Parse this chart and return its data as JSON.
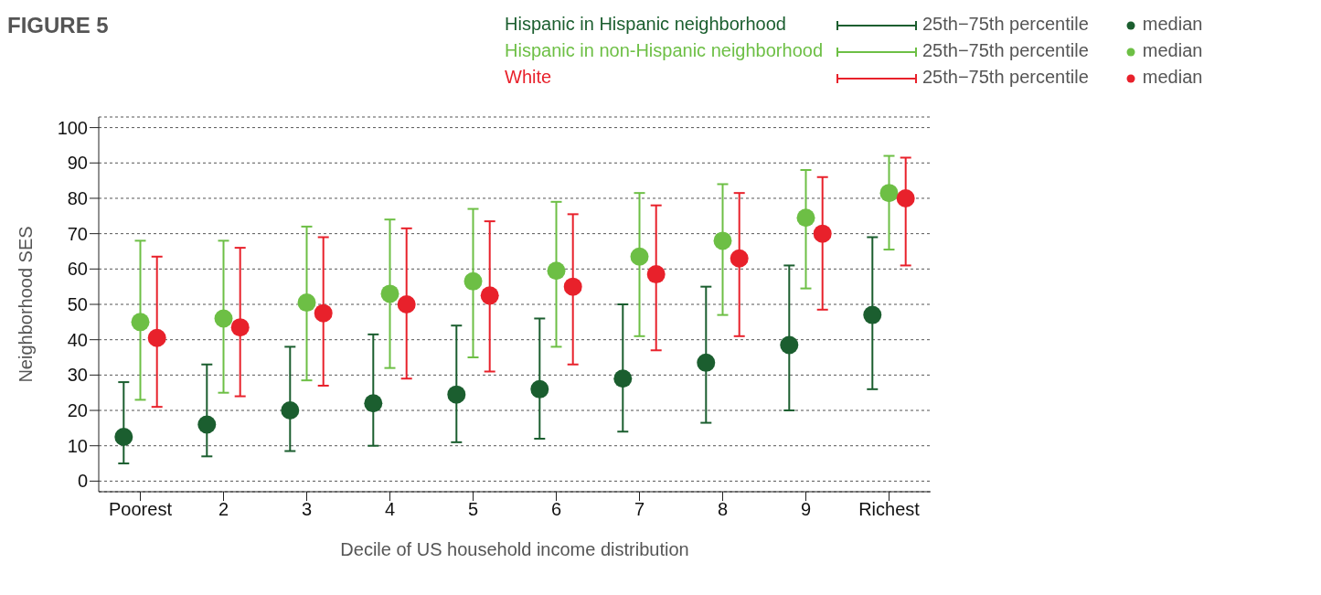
{
  "chart_data": {
    "type": "scatter",
    "title": "FIGURE 5",
    "xlabel": "Decile of US household income distribution",
    "ylabel": "Neighborhood SES",
    "categories": [
      "Poorest",
      "2",
      "3",
      "4",
      "5",
      "6",
      "7",
      "8",
      "9",
      "Richest"
    ],
    "series": [
      {
        "name": "Hispanic in Hispanic neighborhood",
        "color": "#1b5e2f",
        "values": [
          12.5,
          16,
          20,
          22,
          24.5,
          26,
          29,
          33.5,
          38.5,
          47
        ],
        "errors": [
          [
            5,
            28
          ],
          [
            7,
            33
          ],
          [
            8.5,
            38
          ],
          [
            10,
            41.5
          ],
          [
            11,
            44
          ],
          [
            12,
            46
          ],
          [
            14,
            50
          ],
          [
            16.5,
            55
          ],
          [
            20,
            61
          ],
          [
            26,
            69
          ]
        ]
      },
      {
        "name": "Hispanic in non-Hispanic neighborhood",
        "color": "#6dbf45",
        "values": [
          45,
          46,
          50.5,
          53,
          56.5,
          59.5,
          63.5,
          68,
          74.5,
          81.5
        ],
        "errors": [
          [
            23,
            68
          ],
          [
            25,
            68
          ],
          [
            28.5,
            72
          ],
          [
            32,
            74
          ],
          [
            35,
            77
          ],
          [
            38,
            79
          ],
          [
            41,
            81.5
          ],
          [
            47,
            84
          ],
          [
            54.5,
            88
          ],
          [
            65.5,
            92
          ]
        ]
      },
      {
        "name": "White",
        "color": "#e8212b",
        "values": [
          40.5,
          43.5,
          47.5,
          50,
          52.5,
          55,
          58.5,
          63,
          70,
          80
        ],
        "errors": [
          [
            21,
            63.5
          ],
          [
            24,
            66
          ],
          [
            27,
            69
          ],
          [
            29,
            71.5
          ],
          [
            31,
            73.5
          ],
          [
            33,
            75.5
          ],
          [
            37,
            78
          ],
          [
            41,
            81.5
          ],
          [
            48.5,
            86
          ],
          [
            61,
            91.5
          ]
        ]
      }
    ],
    "annotations": [
      "25th−75th percentile",
      "median"
    ],
    "ylim": [
      -3,
      103
    ],
    "yticks": [
      0,
      10,
      20,
      30,
      40,
      50,
      60,
      70,
      80,
      90,
      100
    ],
    "grid": "y",
    "legend": "top right",
    "marker": "circle"
  }
}
